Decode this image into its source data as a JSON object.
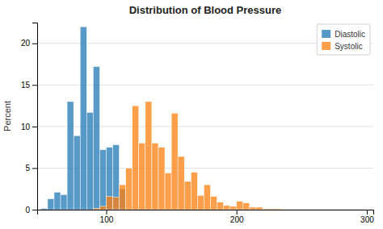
{
  "chart_data": {
    "type": "histogram",
    "title": "Distribution of Blood Pressure",
    "ylabel": "Percent",
    "xlim": [
      47,
      305
    ],
    "ylim": [
      0,
      22.5
    ],
    "xticks": [
      100,
      200,
      300
    ],
    "yticks": [
      0,
      5,
      10,
      15,
      20
    ],
    "bin_width": 5,
    "grid": true,
    "legend": "upper right",
    "series": [
      {
        "name": "Diastolic",
        "x": [
          50,
          55,
          60,
          65,
          70,
          75,
          80,
          85,
          90,
          95,
          100,
          105,
          110
        ],
        "values": [
          0.15,
          1.3,
          2.1,
          1.8,
          13.0,
          8.9,
          22.0,
          11.7,
          17.2,
          7.2,
          7.5,
          7.8,
          2.5
        ]
      },
      {
        "name": "Systolic",
        "x": [
          90,
          95,
          100,
          105,
          110,
          115,
          120,
          125,
          130,
          135,
          140,
          145,
          150,
          155,
          160,
          165,
          170,
          175,
          180,
          185,
          190,
          195,
          200,
          205,
          210,
          215,
          220,
          225,
          230,
          235,
          260
        ],
        "values": [
          0.15,
          0.4,
          1.6,
          1.5,
          3.0,
          5.0,
          12.5,
          8.0,
          13.0,
          8.0,
          7.5,
          4.4,
          11.6,
          6.4,
          3.4,
          4.5,
          1.7,
          3.0,
          1.6,
          0.9,
          0.5,
          0.4,
          1.0,
          0.8,
          0.3,
          0.3,
          0.1,
          0.1,
          0.1,
          0.05,
          0.05
        ]
      }
    ]
  }
}
